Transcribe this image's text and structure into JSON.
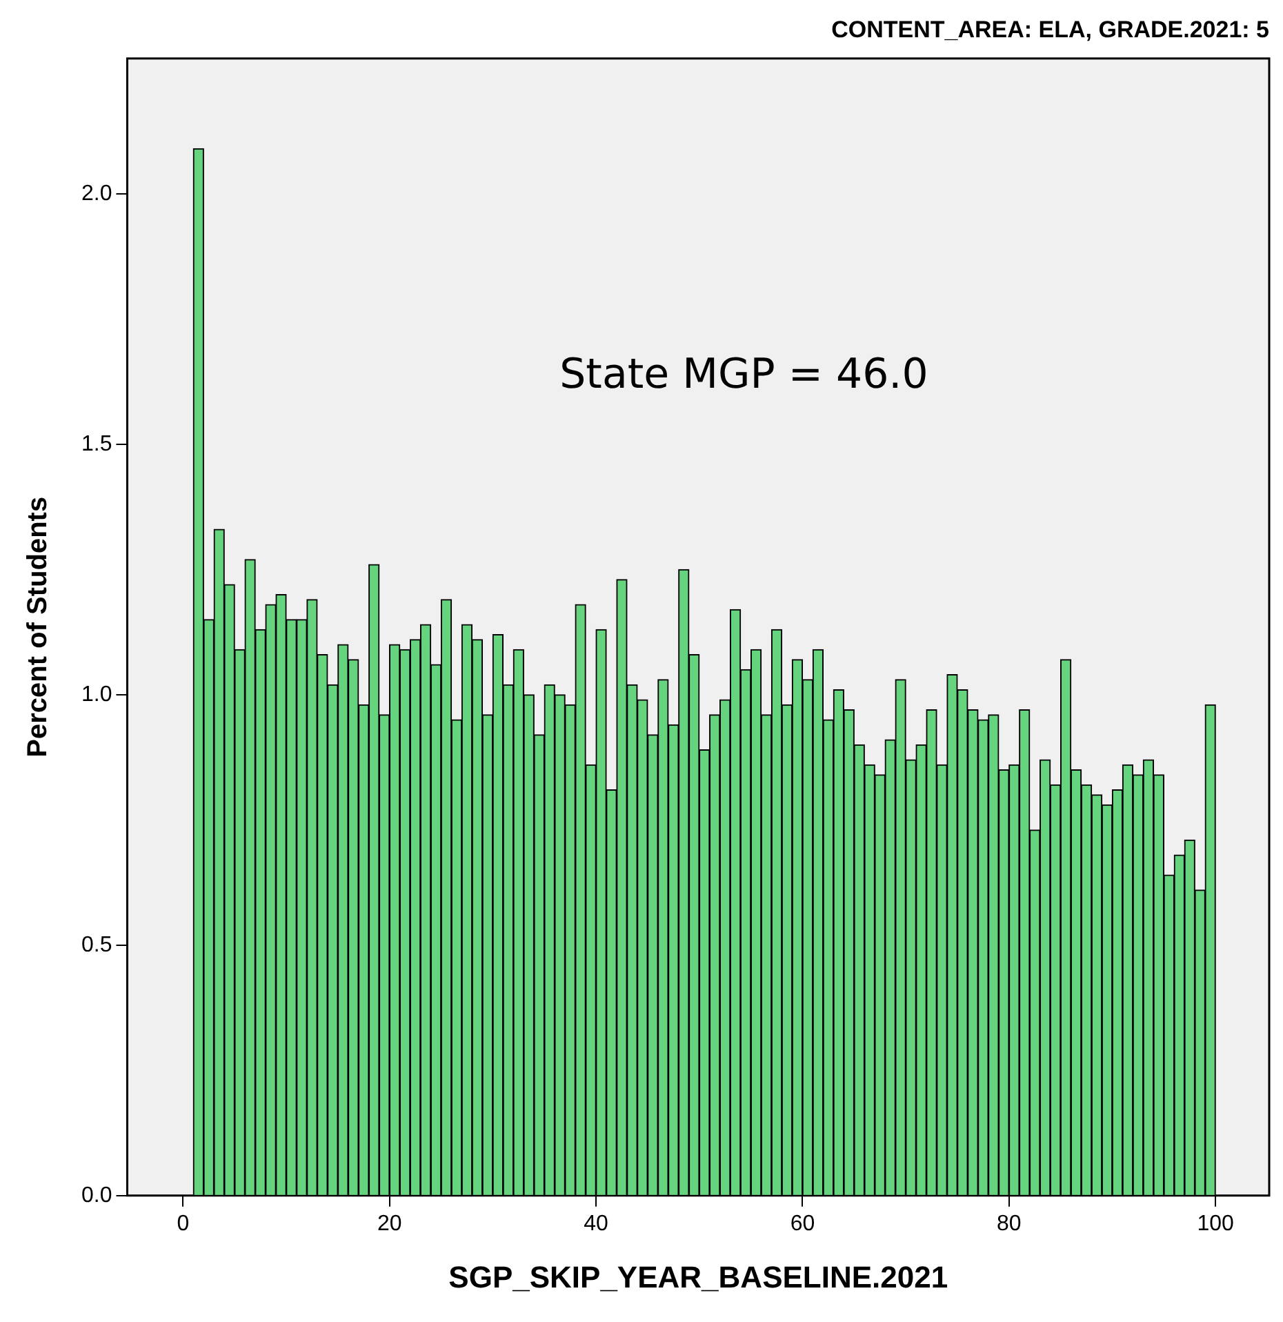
{
  "chart_data": {
    "type": "histogram",
    "title": "CONTENT_AREA: ELA, GRADE.2021: 5",
    "xlabel": "SGP_SKIP_YEAR_BASELINE.2021",
    "ylabel": "Percent of Students",
    "annotations": [
      "State MGP = 46.0"
    ],
    "bins": [
      1,
      2,
      3,
      4,
      5,
      6,
      7,
      8,
      9,
      10,
      11,
      12,
      13,
      14,
      15,
      16,
      17,
      18,
      19,
      20,
      21,
      22,
      23,
      24,
      25,
      26,
      27,
      28,
      29,
      30,
      31,
      32,
      33,
      34,
      35,
      36,
      37,
      38,
      39,
      40,
      41,
      42,
      43,
      44,
      45,
      46,
      47,
      48,
      49,
      50,
      51,
      52,
      53,
      54,
      55,
      56,
      57,
      58,
      59,
      60,
      61,
      62,
      63,
      64,
      65,
      66,
      67,
      68,
      69,
      70,
      71,
      72,
      73,
      74,
      75,
      76,
      77,
      78,
      79,
      80,
      81,
      82,
      83,
      84,
      85,
      86,
      87,
      88,
      89,
      90,
      91,
      92,
      93,
      94,
      95,
      96,
      97,
      98,
      99,
      100
    ],
    "values": [
      2.09,
      1.15,
      1.33,
      1.22,
      1.09,
      1.27,
      1.13,
      1.18,
      1.2,
      1.15,
      1.15,
      1.19,
      1.08,
      1.02,
      1.1,
      1.07,
      0.98,
      1.26,
      0.96,
      1.1,
      1.09,
      1.11,
      1.14,
      1.06,
      1.19,
      0.95,
      1.14,
      1.11,
      0.96,
      1.12,
      1.02,
      1.09,
      1.0,
      0.92,
      1.02,
      1.0,
      0.98,
      1.18,
      0.86,
      1.13,
      0.81,
      1.23,
      1.02,
      0.99,
      0.92,
      1.03,
      0.94,
      1.25,
      1.08,
      0.89,
      0.96,
      0.99,
      1.17,
      1.05,
      1.09,
      0.96,
      1.13,
      0.98,
      1.07,
      1.03,
      1.09,
      0.95,
      1.01,
      0.97,
      0.9,
      0.86,
      0.84,
      0.91,
      1.03,
      0.87,
      0.9,
      0.97,
      0.86,
      1.04,
      1.01,
      0.97,
      0.95,
      0.96,
      0.85,
      0.86,
      0.97,
      0.73,
      0.87,
      0.82,
      1.07,
      0.85,
      0.82,
      0.8,
      0.78,
      0.81,
      0.86,
      0.84,
      0.87,
      0.84,
      0.64,
      0.68,
      0.71,
      0.61,
      0.98
    ],
    "color": "#66d37e",
    "xlim": [
      -5.4,
      105.2
    ],
    "xticks": [
      0,
      20,
      40,
      60,
      80,
      100
    ],
    "ylim": [
      0,
      2.27
    ],
    "yticks": [
      {
        "value": 0,
        "label": "0.0"
      },
      {
        "value": 0.5,
        "label": "0.5"
      },
      {
        "value": 1,
        "label": "1.0"
      },
      {
        "value": 1.5,
        "label": "1.5"
      },
      {
        "value": 2,
        "label": "2.0"
      }
    ],
    "grid": false,
    "legend": false
  }
}
